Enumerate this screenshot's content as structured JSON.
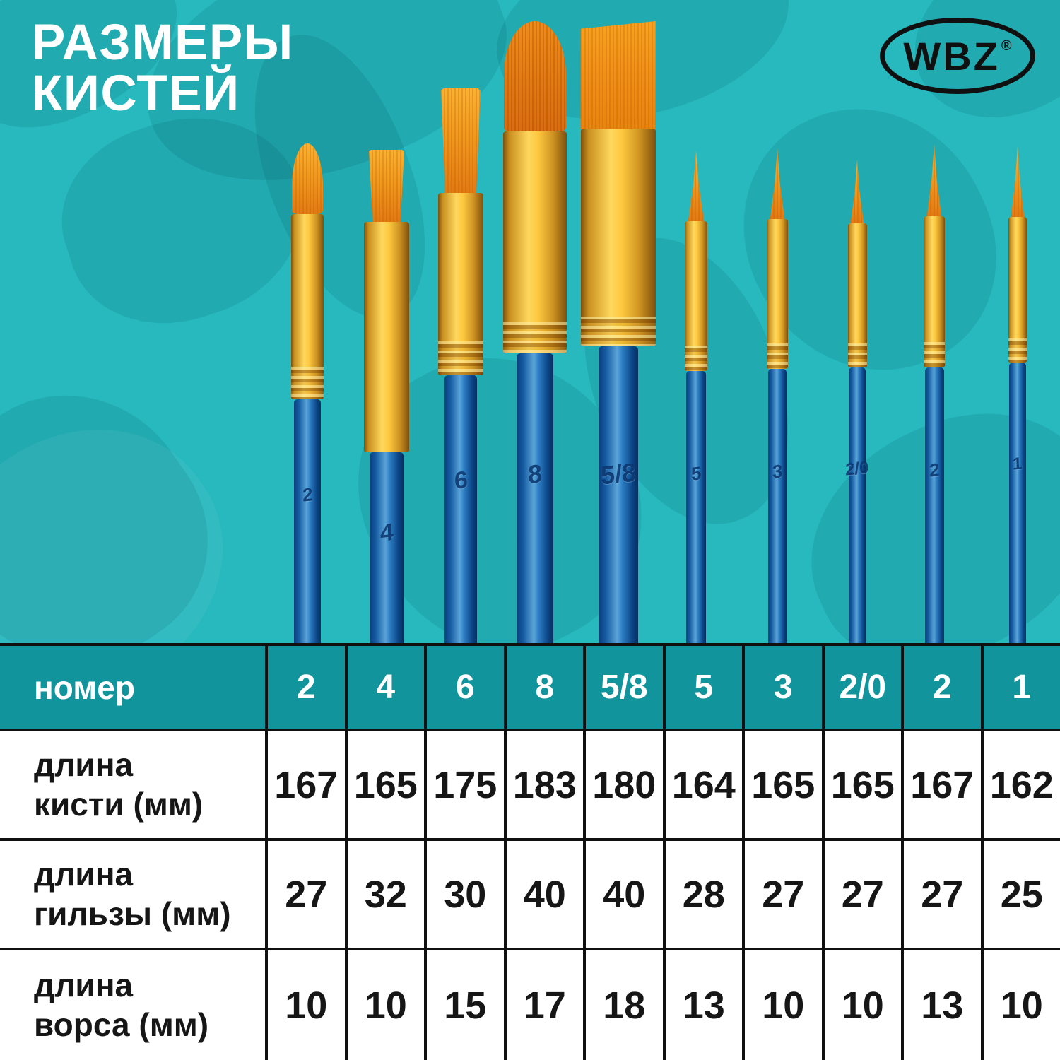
{
  "title": {
    "line1": "РАЗМЕРЫ",
    "line2": "КИСТЕЙ"
  },
  "brand": {
    "name": "WBZ",
    "registered_mark": "®"
  },
  "brushes": [
    {
      "size": "2",
      "shape": "round"
    },
    {
      "size": "4",
      "shape": "flat"
    },
    {
      "size": "6",
      "shape": "flat"
    },
    {
      "size": "8",
      "shape": "filbert"
    },
    {
      "size": "5/8",
      "shape": "wash"
    },
    {
      "size": "5",
      "shape": "liner"
    },
    {
      "size": "3",
      "shape": "liner"
    },
    {
      "size": "2/0",
      "shape": "liner"
    },
    {
      "size": "2",
      "shape": "liner"
    },
    {
      "size": "1",
      "shape": "liner"
    }
  ],
  "table": {
    "corner_label": "номер",
    "columns": [
      "2",
      "4",
      "6",
      "8",
      "5/8",
      "5",
      "3",
      "2/0",
      "2",
      "1"
    ],
    "rows": [
      {
        "label_lines": [
          "длина",
          "кисти (мм)"
        ],
        "values": [
          "167",
          "165",
          "175",
          "183",
          "180",
          "164",
          "165",
          "165",
          "167",
          "162"
        ]
      },
      {
        "label_lines": [
          "длина",
          "гильзы (мм)"
        ],
        "values": [
          "27",
          "32",
          "30",
          "40",
          "40",
          "28",
          "27",
          "27",
          "27",
          "25"
        ]
      },
      {
        "label_lines": [
          "длина",
          "ворса (мм)"
        ],
        "values": [
          "10",
          "10",
          "15",
          "17",
          "18",
          "13",
          "10",
          "10",
          "13",
          "10"
        ]
      }
    ]
  },
  "chart_data": {
    "type": "table",
    "title": "Размеры кистей",
    "columns": [
      "номер",
      "2",
      "4",
      "6",
      "8",
      "5/8",
      "5",
      "3",
      "2/0",
      "2",
      "1"
    ],
    "rows": [
      [
        "длина кисти (мм)",
        167,
        165,
        175,
        183,
        180,
        164,
        165,
        165,
        167,
        162
      ],
      [
        "длина гильзы (мм)",
        27,
        32,
        30,
        40,
        40,
        28,
        27,
        27,
        27,
        25
      ],
      [
        "длина ворса (мм)",
        10,
        10,
        15,
        17,
        18,
        13,
        10,
        10,
        13,
        10
      ]
    ]
  },
  "colors": {
    "background_teal": "#27b9be",
    "pattern_teal": "#1aa5ac",
    "header_teal": "#11949c",
    "table_line": "#101010",
    "text_dark": "#161616",
    "text_white": "#ffffff",
    "logo_black": "#101010",
    "handle_blue": "#1b64aa",
    "ferrule_gold": "#ffd85e",
    "bristle_orange": "#ef8c17"
  }
}
